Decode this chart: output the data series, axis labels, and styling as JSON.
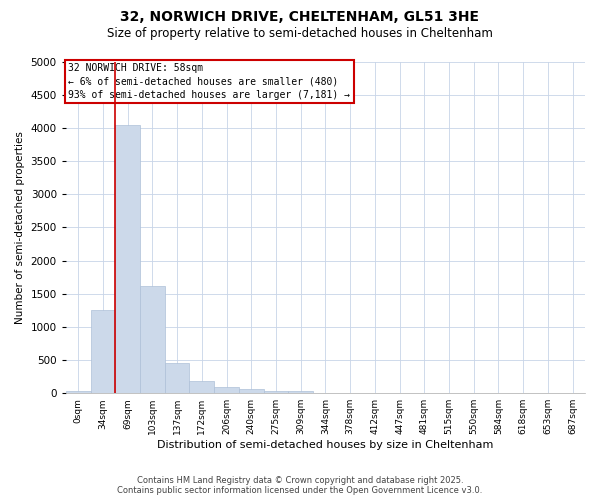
{
  "title": "32, NORWICH DRIVE, CHELTENHAM, GL51 3HE",
  "subtitle": "Size of property relative to semi-detached houses in Cheltenham",
  "xlabel": "Distribution of semi-detached houses by size in Cheltenham",
  "ylabel": "Number of semi-detached properties",
  "bar_color": "#ccd9ea",
  "bar_edge_color": "#aec0d8",
  "categories": [
    "0sqm",
    "34sqm",
    "69sqm",
    "103sqm",
    "137sqm",
    "172sqm",
    "206sqm",
    "240sqm",
    "275sqm",
    "309sqm",
    "344sqm",
    "378sqm",
    "412sqm",
    "447sqm",
    "481sqm",
    "515sqm",
    "550sqm",
    "584sqm",
    "618sqm",
    "653sqm",
    "687sqm"
  ],
  "values": [
    30,
    1250,
    4050,
    1620,
    460,
    180,
    100,
    60,
    40,
    30,
    0,
    0,
    0,
    0,
    0,
    0,
    0,
    0,
    0,
    0,
    0
  ],
  "ylim": [
    0,
    5000
  ],
  "yticks": [
    0,
    500,
    1000,
    1500,
    2000,
    2500,
    3000,
    3500,
    4000,
    4500,
    5000
  ],
  "annotation_title": "32 NORWICH DRIVE: 58sqm",
  "annotation_line1": "← 6% of semi-detached houses are smaller (480)",
  "annotation_line2": "93% of semi-detached houses are larger (7,181) →",
  "annotation_box_color": "#ffffff",
  "annotation_box_edge_color": "#cc0000",
  "property_line_color": "#cc0000",
  "footer_line1": "Contains HM Land Registry data © Crown copyright and database right 2025.",
  "footer_line2": "Contains public sector information licensed under the Open Government Licence v3.0.",
  "background_color": "#ffffff",
  "grid_color": "#c8d4e8"
}
